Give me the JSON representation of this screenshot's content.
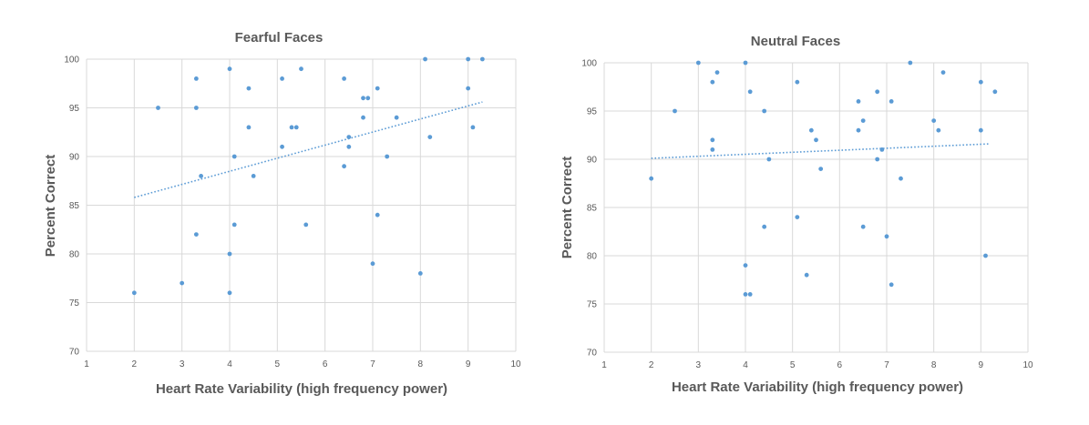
{
  "colors": {
    "marker": "#5b9bd5",
    "grid": "#d9d9d9",
    "text": "#595959"
  },
  "chart_data": [
    {
      "type": "scatter",
      "title": "Fearful Faces",
      "xlabel": "Heart Rate Variability (high frequency power)",
      "ylabel": "Percent Correct",
      "xlim": [
        1,
        10
      ],
      "ylim": [
        70,
        100
      ],
      "x_ticks": [
        1,
        2,
        3,
        4,
        5,
        6,
        7,
        8,
        9,
        10
      ],
      "y_ticks": [
        70,
        75,
        80,
        85,
        90,
        95,
        100
      ],
      "grid": true,
      "trendline": {
        "style": "dotted",
        "x": [
          2,
          9.3
        ],
        "y": [
          85.8,
          95.6
        ]
      },
      "points": [
        [
          2,
          76
        ],
        [
          2.5,
          95
        ],
        [
          3,
          77
        ],
        [
          3.3,
          98
        ],
        [
          3.3,
          95
        ],
        [
          3.3,
          82
        ],
        [
          3.4,
          88
        ],
        [
          4,
          99
        ],
        [
          4,
          80
        ],
        [
          4,
          76
        ],
        [
          4.1,
          90
        ],
        [
          4.1,
          83
        ],
        [
          4.4,
          97
        ],
        [
          4.4,
          93
        ],
        [
          4.5,
          88
        ],
        [
          5.1,
          98
        ],
        [
          5.1,
          91
        ],
        [
          5.3,
          93
        ],
        [
          5.4,
          93
        ],
        [
          5.5,
          99
        ],
        [
          5.6,
          83
        ],
        [
          6.4,
          98
        ],
        [
          6.4,
          89
        ],
        [
          6.5,
          92
        ],
        [
          6.5,
          91
        ],
        [
          6.8,
          96
        ],
        [
          6.8,
          94
        ],
        [
          6.9,
          96
        ],
        [
          7,
          79
        ],
        [
          7.1,
          97
        ],
        [
          7.1,
          84
        ],
        [
          7.3,
          90
        ],
        [
          7.5,
          94
        ],
        [
          8,
          78
        ],
        [
          8.1,
          100
        ],
        [
          8.2,
          92
        ],
        [
          9,
          100
        ],
        [
          9,
          97
        ],
        [
          9.1,
          93
        ],
        [
          9.3,
          100
        ]
      ]
    },
    {
      "type": "scatter",
      "title": "Neutral Faces",
      "xlabel": "Heart Rate Variability (high frequency power)",
      "ylabel": "Percent Correct",
      "xlim": [
        1,
        10
      ],
      "ylim": [
        70,
        100
      ],
      "x_ticks": [
        1,
        2,
        3,
        4,
        5,
        6,
        7,
        8,
        9,
        10
      ],
      "y_ticks": [
        70,
        75,
        80,
        85,
        90,
        95,
        100
      ],
      "grid": true,
      "trendline": {
        "style": "dotted",
        "x": [
          2,
          9.2
        ],
        "y": [
          90.1,
          91.6
        ]
      },
      "points": [
        [
          2,
          88
        ],
        [
          2.5,
          95
        ],
        [
          3,
          100
        ],
        [
          3.3,
          98
        ],
        [
          3.3,
          92
        ],
        [
          3.3,
          91
        ],
        [
          3.4,
          99
        ],
        [
          4,
          100
        ],
        [
          4,
          79
        ],
        [
          4,
          76
        ],
        [
          4.1,
          97
        ],
        [
          4.1,
          76
        ],
        [
          4.4,
          95
        ],
        [
          4.4,
          83
        ],
        [
          4.5,
          90
        ],
        [
          5.1,
          98
        ],
        [
          5.1,
          84
        ],
        [
          5.3,
          78
        ],
        [
          5.4,
          93
        ],
        [
          5.5,
          92
        ],
        [
          5.6,
          89
        ],
        [
          6.4,
          96
        ],
        [
          6.4,
          93
        ],
        [
          6.5,
          94
        ],
        [
          6.5,
          83
        ],
        [
          6.8,
          97
        ],
        [
          6.8,
          90
        ],
        [
          6.9,
          91
        ],
        [
          7,
          82
        ],
        [
          7.1,
          96
        ],
        [
          7.1,
          77
        ],
        [
          7.3,
          88
        ],
        [
          7.5,
          100
        ],
        [
          8,
          94
        ],
        [
          8.1,
          93
        ],
        [
          8.2,
          99
        ],
        [
          9,
          98
        ],
        [
          9,
          93
        ],
        [
          9.1,
          80
        ],
        [
          9.3,
          97
        ]
      ]
    }
  ]
}
